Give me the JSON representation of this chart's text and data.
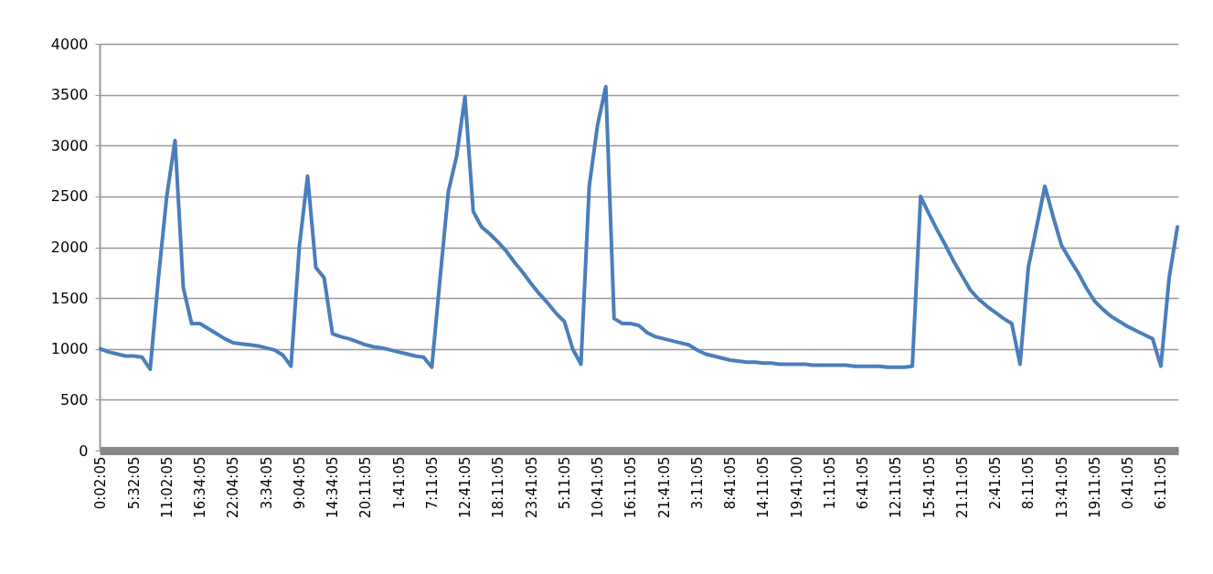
{
  "chart_data": {
    "type": "line",
    "categories": [
      "0:02:05",
      null,
      null,
      null,
      "5:32:05",
      null,
      null,
      null,
      "11:02:05",
      null,
      null,
      null,
      "16:34:05",
      null,
      null,
      null,
      "22:04:05",
      null,
      null,
      null,
      "3:34:05",
      null,
      null,
      null,
      "9:04:05",
      null,
      null,
      null,
      "14:34:05",
      null,
      null,
      null,
      "20:11:05",
      null,
      null,
      null,
      "1:41:05",
      null,
      null,
      null,
      "7:11:05",
      null,
      null,
      null,
      "12:41:05",
      null,
      null,
      null,
      "18:11:05",
      null,
      null,
      null,
      "23:41:05",
      null,
      null,
      null,
      "5:11:05",
      null,
      null,
      null,
      "10:41:05",
      null,
      null,
      null,
      "16:11:05",
      null,
      null,
      null,
      "21:41:05",
      null,
      null,
      null,
      "3:11:05",
      null,
      null,
      null,
      "8:41:05",
      null,
      null,
      null,
      "14:11:05",
      null,
      null,
      null,
      "19:41:00",
      null,
      null,
      null,
      "1:11:05",
      null,
      null,
      null,
      "6:41:05",
      null,
      null,
      null,
      "12:11:05",
      null,
      null,
      null,
      "15:41:05",
      null,
      null,
      null,
      "21:11:05",
      null,
      null,
      null,
      "2:41:05",
      null,
      null,
      null,
      "8:11:05",
      null,
      null,
      null,
      "13:41:05",
      null,
      null,
      null,
      "19:11:05",
      null,
      null,
      null,
      "0:41:05",
      null,
      null,
      null,
      "6:11:05",
      null,
      null
    ],
    "series": [
      {
        "color": "#4a7ebb",
        "values": [
          1000,
          970,
          950,
          930,
          930,
          920,
          800,
          1700,
          2500,
          3050,
          1600,
          1250,
          1250,
          1200,
          1150,
          1100,
          1060,
          1050,
          1040,
          1030,
          1010,
          990,
          940,
          830,
          2000,
          2700,
          1800,
          1700,
          1150,
          1120,
          1100,
          1070,
          1040,
          1020,
          1010,
          990,
          970,
          950,
          930,
          920,
          820,
          1700,
          2550,
          2900,
          3480,
          2350,
          2200,
          2130,
          2050,
          1960,
          1850,
          1750,
          1640,
          1540,
          1450,
          1350,
          1270,
          1000,
          850,
          2600,
          3200,
          3580,
          1300,
          1250,
          1250,
          1230,
          1160,
          1120,
          1100,
          1080,
          1060,
          1040,
          990,
          950,
          930,
          910,
          890,
          880,
          870,
          870,
          860,
          860,
          850,
          850,
          850,
          850,
          840,
          840,
          840,
          840,
          840,
          830,
          830,
          830,
          830,
          820,
          820,
          820,
          830,
          2500,
          2330,
          2170,
          2020,
          1860,
          1720,
          1580,
          1490,
          1420,
          1360,
          1300,
          1250,
          850,
          1800,
          2200,
          2600,
          2300,
          2020,
          1880,
          1750,
          1600,
          1470,
          1390,
          1320,
          1270,
          1220,
          1180,
          1140,
          1100,
          830,
          1700,
          2200
        ]
      }
    ],
    "ylim": [
      0,
      4000
    ],
    "yticks": [
      0,
      500,
      1000,
      1500,
      2000,
      2500,
      3000,
      3500,
      4000
    ],
    "grid": "y"
  }
}
